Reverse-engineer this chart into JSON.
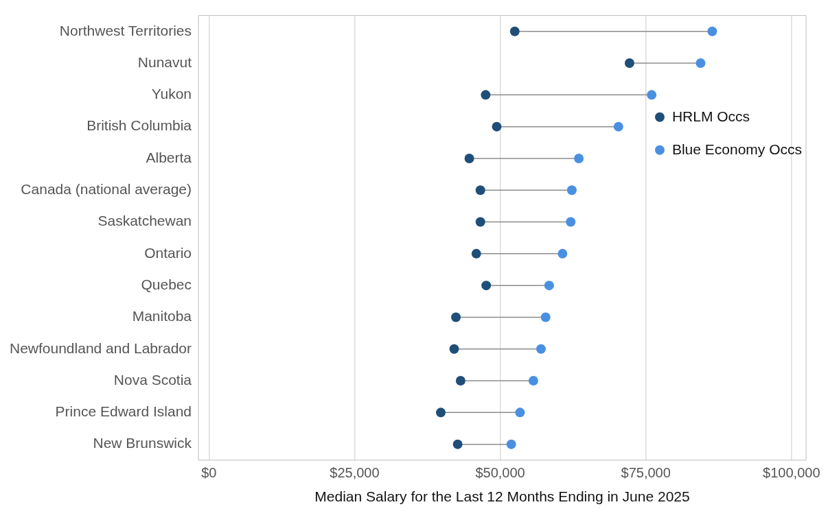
{
  "chart_data": {
    "type": "scatter",
    "orientation": "horizontal",
    "xlabel": "Median Salary for the Last 12 Months Ending in June 2025",
    "categories": [
      "Northwest Territories",
      "Nunavut",
      "Yukon",
      "British Columbia",
      "Alberta",
      "Canada (national average)",
      "Saskatchewan",
      "Ontario",
      "Quebec",
      "Manitoba",
      "Newfoundland and Labrador",
      "Nova Scotia",
      "Prince Edward Island",
      "New Brunswick"
    ],
    "series": [
      {
        "name": "HRLM Occs",
        "color": "#1f4e79",
        "values": [
          52500,
          72200,
          47500,
          49400,
          44700,
          46600,
          46600,
          45900,
          47600,
          42400,
          42100,
          43200,
          39800,
          42700
        ]
      },
      {
        "name": "Blue Economy Occs",
        "color": "#4a90e2",
        "values": [
          86400,
          84400,
          76000,
          70300,
          63500,
          62300,
          62100,
          60700,
          58400,
          57800,
          57000,
          55700,
          53400,
          51900
        ]
      }
    ],
    "xlim": [
      -1800,
      102500
    ],
    "xticks": [
      {
        "value": 0,
        "label": "$0"
      },
      {
        "value": 25000,
        "label": "$25,000"
      },
      {
        "value": 50000,
        "label": "$50,000"
      },
      {
        "value": 75000,
        "label": "$75,000"
      },
      {
        "value": 100000,
        "label": "$100,000"
      }
    ],
    "grid": "x",
    "legend": "right",
    "marker": "circle"
  }
}
